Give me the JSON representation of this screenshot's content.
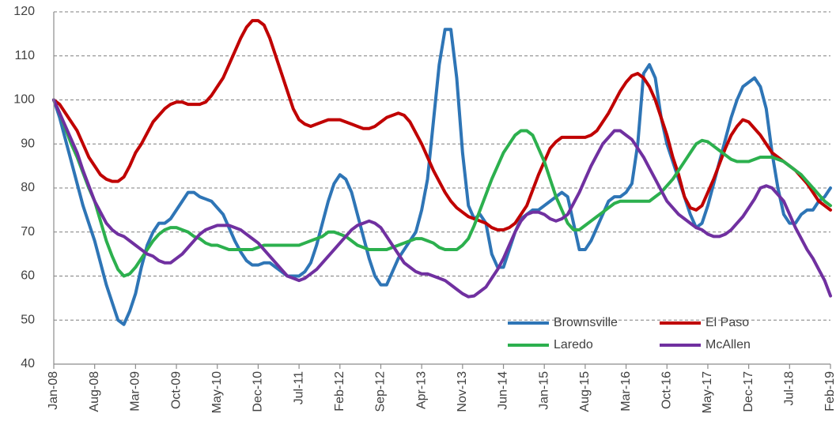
{
  "chart_data": {
    "type": "line",
    "categories": [
      "Jan-08",
      null,
      null,
      null,
      null,
      null,
      null,
      "Aug-08",
      null,
      null,
      null,
      null,
      null,
      null,
      "Mar-09",
      null,
      null,
      null,
      null,
      null,
      null,
      "Oct-09",
      null,
      null,
      null,
      null,
      null,
      null,
      "May-10",
      null,
      null,
      null,
      null,
      null,
      null,
      "Dec-10",
      null,
      null,
      null,
      null,
      null,
      null,
      "Jul-11",
      null,
      null,
      null,
      null,
      null,
      null,
      "Feb-12",
      null,
      null,
      null,
      null,
      null,
      null,
      "Sep-12",
      null,
      null,
      null,
      null,
      null,
      null,
      "Apr-13",
      null,
      null,
      null,
      null,
      null,
      null,
      "Nov-13",
      null,
      null,
      null,
      null,
      null,
      null,
      "Jun-14",
      null,
      null,
      null,
      null,
      null,
      null,
      "Jan-15",
      null,
      null,
      null,
      null,
      null,
      null,
      "Aug-15",
      null,
      null,
      null,
      null,
      null,
      null,
      "Mar-16",
      null,
      null,
      null,
      null,
      null,
      null,
      "Oct-16",
      null,
      null,
      null,
      null,
      null,
      null,
      "May-17",
      null,
      null,
      null,
      null,
      null,
      null,
      "Dec-17",
      null,
      null,
      null,
      null,
      null,
      null,
      "Jul-18",
      null,
      null,
      null,
      null,
      null,
      null,
      "Feb-19"
    ],
    "series": [
      {
        "name": "Brownsville",
        "color": "#2e75b6",
        "values": [
          100,
          96,
          91,
          86,
          81,
          76,
          72,
          68,
          63,
          58,
          54,
          50,
          49,
          52,
          56,
          62,
          67,
          70,
          72,
          72,
          73,
          75,
          77,
          79,
          79,
          78,
          77.5,
          77,
          75.5,
          74,
          71,
          68,
          65.5,
          63.5,
          62.5,
          62.5,
          63,
          63,
          62,
          61,
          60,
          60,
          60,
          61,
          63,
          67,
          72,
          77,
          81,
          83,
          82,
          79,
          74,
          69,
          64,
          60,
          58,
          58,
          61,
          64,
          66,
          68,
          70,
          75,
          82,
          95,
          108,
          116,
          116,
          105,
          88,
          76,
          73,
          74,
          72,
          65,
          62,
          62,
          66,
          70,
          73,
          74,
          75,
          75,
          76,
          77,
          78,
          79,
          78,
          72,
          66,
          66,
          68,
          71,
          74,
          77,
          78,
          78,
          79,
          81,
          90,
          106,
          108,
          105,
          96,
          90,
          86,
          82,
          78,
          74,
          71,
          72,
          76,
          81,
          86,
          91,
          96,
          100,
          103,
          104,
          105,
          103,
          98,
          88,
          80,
          74,
          72,
          72,
          74,
          75,
          75,
          77,
          78,
          80
        ]
      },
      {
        "name": "El Paso",
        "color": "#c00000",
        "values": [
          100,
          99,
          97,
          95,
          93,
          90,
          87,
          85,
          83,
          82,
          81.5,
          81.5,
          82.5,
          85,
          88,
          90,
          92.5,
          95,
          96.5,
          98,
          99,
          99.5,
          99.5,
          99,
          99,
          99,
          99.5,
          101,
          103,
          105,
          108,
          111,
          114,
          116.5,
          118,
          118,
          117,
          114,
          110,
          106,
          102,
          98,
          95.5,
          94.5,
          94,
          94.5,
          95,
          95.5,
          95.5,
          95.5,
          95,
          94.5,
          94,
          93.5,
          93.5,
          94,
          95,
          96,
          96.5,
          97,
          96.5,
          95,
          92.5,
          90,
          87,
          84,
          81.5,
          79,
          77,
          75.5,
          74.5,
          73.5,
          73,
          72.5,
          72,
          71,
          70.5,
          70.5,
          71,
          72,
          74,
          76,
          79.5,
          83,
          86,
          89,
          90.5,
          91.5,
          91.5,
          91.5,
          91.5,
          91.5,
          92,
          93,
          95,
          97,
          99.5,
          102,
          104,
          105.5,
          106,
          105,
          103,
          100,
          96,
          92,
          87,
          83,
          78,
          75.5,
          75,
          76,
          79,
          82,
          85.5,
          89,
          92,
          94,
          95.5,
          95,
          93.5,
          92,
          90,
          88,
          87,
          86,
          85,
          84,
          82.5,
          81,
          79,
          77,
          76,
          75
        ]
      },
      {
        "name": "Laredo",
        "color": "#2cb04e",
        "values": [
          100,
          97,
          93.5,
          90,
          87,
          83.5,
          80,
          77,
          72.5,
          68,
          64.5,
          61.5,
          60,
          60.5,
          62,
          64,
          66,
          68,
          69.5,
          70.5,
          71,
          71,
          70.5,
          70,
          69,
          68.5,
          67.5,
          67,
          67,
          66.5,
          66,
          66,
          66,
          66,
          66,
          66.5,
          67,
          67,
          67,
          67,
          67,
          67,
          67,
          67.5,
          68,
          68.5,
          69,
          70,
          70,
          69.5,
          69,
          68,
          67,
          66.5,
          66,
          66,
          66,
          66,
          66.5,
          67,
          67.5,
          68,
          68.5,
          68.5,
          68,
          67.5,
          66.5,
          66,
          66,
          66,
          67,
          68.5,
          71.5,
          75,
          78.5,
          82,
          85,
          88,
          90,
          92,
          93,
          93,
          92,
          89,
          86,
          82,
          78,
          75,
          72,
          70.5,
          70.5,
          71.5,
          72.5,
          73.5,
          74.5,
          75.5,
          76.5,
          77,
          77,
          77,
          77,
          77,
          77,
          78,
          79,
          80.5,
          82,
          84,
          86,
          88,
          90,
          90.8,
          90.5,
          89.5,
          88.5,
          87.5,
          86.5,
          86,
          86,
          86,
          86.5,
          87,
          87,
          87,
          86.5,
          86,
          85,
          84,
          83,
          81.5,
          80,
          78.5,
          77,
          76
        ]
      },
      {
        "name": "McAllen",
        "color": "#7030a0",
        "values": [
          100,
          97,
          94,
          91,
          88,
          84,
          80.5,
          77,
          74.5,
          72,
          70.5,
          69.5,
          69,
          68,
          67,
          66,
          65,
          64.5,
          63.5,
          63,
          63,
          64,
          65,
          66.5,
          68,
          69.5,
          70.5,
          71,
          71.5,
          71.5,
          71.5,
          71,
          70.5,
          69.5,
          68.5,
          67.5,
          66,
          64.5,
          63,
          61.5,
          60,
          59.5,
          59,
          59.5,
          60.5,
          61.5,
          63,
          64.5,
          66,
          67.5,
          69,
          70.5,
          71.5,
          72,
          72.5,
          72,
          71,
          69,
          67,
          65,
          63,
          62,
          61,
          60.5,
          60.5,
          60,
          59.5,
          59,
          58,
          57,
          56,
          55.3,
          55.5,
          56.5,
          57.5,
          59.5,
          61.5,
          64,
          67,
          70,
          72.5,
          74,
          74.5,
          74.5,
          74,
          73,
          72.5,
          73,
          74,
          76.5,
          79,
          82,
          85,
          87.5,
          90,
          91.5,
          93,
          93,
          92,
          91,
          89,
          87,
          84.5,
          82,
          79.5,
          77,
          75.5,
          74,
          73,
          72,
          71,
          70.5,
          69.5,
          69,
          69,
          69.5,
          70.5,
          72,
          73.5,
          75.5,
          77.5,
          80,
          80.5,
          80,
          78.5,
          77,
          74,
          71,
          68.5,
          66,
          64,
          61.5,
          59,
          55.5
        ]
      }
    ],
    "ylim": [
      40,
      120
    ],
    "yticks": [
      40,
      50,
      60,
      70,
      80,
      90,
      100,
      110,
      120
    ],
    "grid": true,
    "legend": "lower right"
  }
}
